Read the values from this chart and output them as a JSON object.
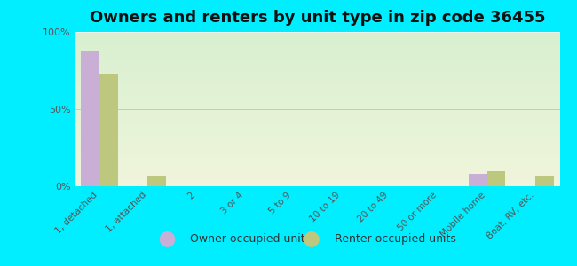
{
  "title": "Owners and renters by unit type in zip code 36455",
  "categories": [
    "1, detached",
    "1, attached",
    "2",
    "3 or 4",
    "5 to 9",
    "10 to 19",
    "20 to 49",
    "50 or more",
    "Mobile home",
    "Boat, RV, etc."
  ],
  "owner_values": [
    88,
    0,
    0,
    0,
    0,
    0,
    0,
    0,
    8,
    0
  ],
  "renter_values": [
    73,
    7,
    0,
    0,
    0,
    0,
    0,
    0,
    10,
    7
  ],
  "owner_color": "#c9aed5",
  "renter_color": "#bdc87e",
  "bg_outer": "#00eeff",
  "plot_bg_top": "#d8f0d0",
  "plot_bg_bottom": "#f0f5dc",
  "ylim": [
    0,
    100
  ],
  "yticks": [
    0,
    50,
    100
  ],
  "ytick_labels": [
    "0%",
    "50%",
    "100%"
  ],
  "bar_width": 0.38,
  "legend_owner": "Owner occupied units",
  "legend_renter": "Renter occupied units",
  "title_fontsize": 13,
  "tick_fontsize": 7.5,
  "legend_fontsize": 9,
  "hline_50_color": "#ffb0b0",
  "grid_color": "#ffffff"
}
